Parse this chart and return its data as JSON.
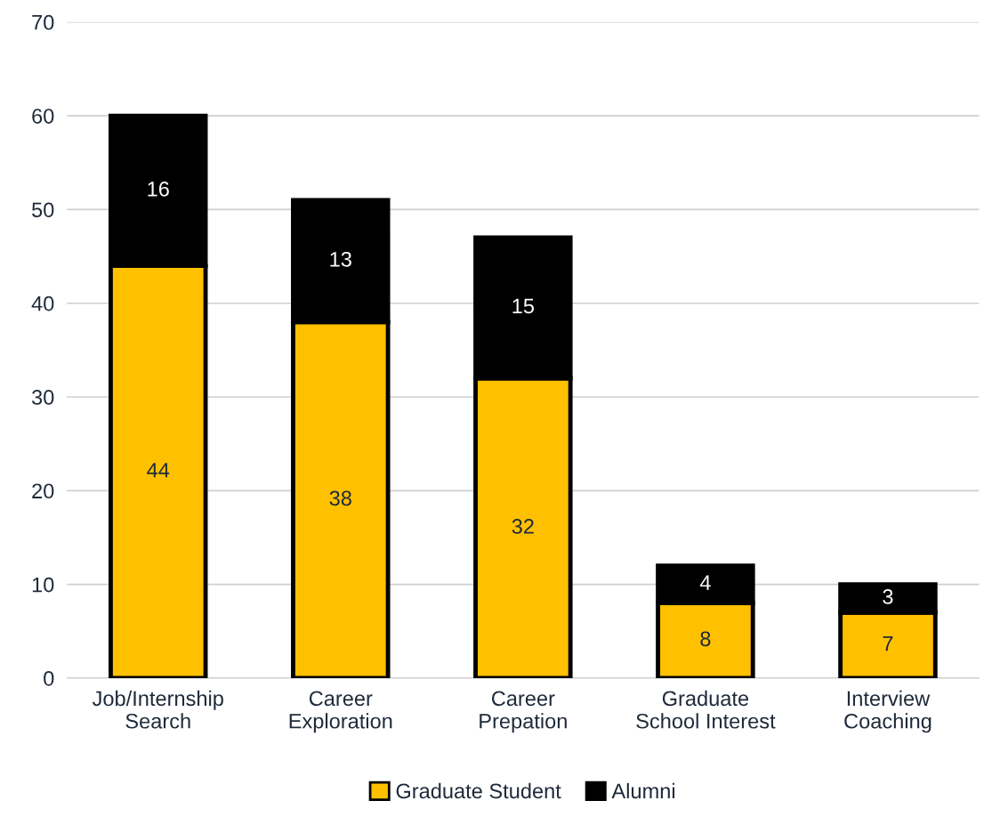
{
  "chart_data": {
    "type": "bar",
    "stacked": true,
    "categories": [
      "Job/Internship\nSearch",
      "Career\nExploration",
      "Career\nPrepation",
      "Graduate\nSchool Interest",
      "Interview\nCoaching"
    ],
    "series": [
      {
        "name": "Graduate Student",
        "color": "#ffc000",
        "values": [
          44,
          38,
          32,
          8,
          7
        ]
      },
      {
        "name": "Alumni",
        "color": "#000000",
        "values": [
          16,
          13,
          15,
          4,
          3
        ]
      }
    ],
    "ylim": [
      0,
      70
    ],
    "yticks": [
      0,
      10,
      20,
      30,
      40,
      50,
      60,
      70
    ],
    "grid": "y",
    "legend": "bottom",
    "data_labels": true
  }
}
